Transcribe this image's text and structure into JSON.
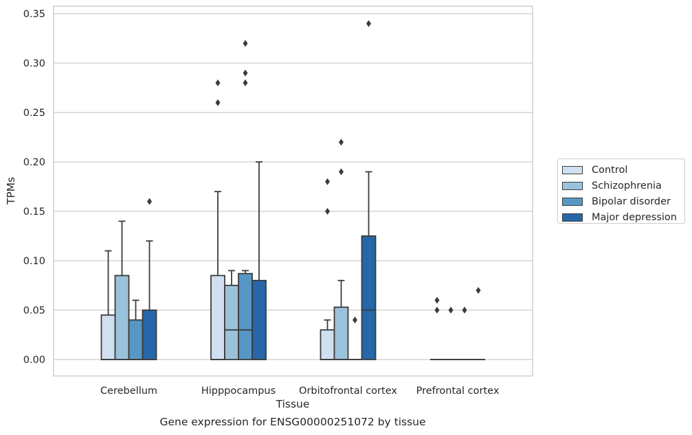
{
  "chart_data": {
    "type": "box",
    "xlabel": "Tissue",
    "ylabel": "TPMs",
    "caption": "Gene expression for ENSG00000251072 by tissue",
    "ylim": [
      -0.017,
      0.358
    ],
    "yticks": [
      0.0,
      0.05,
      0.1,
      0.15,
      0.2,
      0.25,
      0.3,
      0.35
    ],
    "ytick_labels": [
      "0.00",
      "0.05",
      "0.10",
      "0.15",
      "0.20",
      "0.25",
      "0.30",
      "0.35"
    ],
    "grid": "horizontal",
    "legend_position": "right, outside plot",
    "categories": [
      "Cerebellum",
      "Hipppocampus",
      "Orbitofrontal cortex",
      "Prefrontal cortex"
    ],
    "series": [
      {
        "name": "Control",
        "color": "#d0e0f0",
        "boxes": [
          {
            "min": 0.0,
            "q1": 0.0,
            "median": 0.0,
            "q3": 0.045,
            "max": 0.11,
            "outliers": []
          },
          {
            "min": 0.0,
            "q1": 0.0,
            "median": 0.0,
            "q3": 0.085,
            "max": 0.17,
            "outliers": [
              0.26,
              0.28
            ]
          },
          {
            "min": 0.0,
            "q1": 0.0,
            "median": 0.0,
            "q3": 0.03,
            "max": 0.04,
            "outliers": [
              0.15,
              0.18
            ]
          },
          {
            "min": 0.0,
            "q1": 0.0,
            "median": 0.0,
            "q3": 0.0,
            "max": 0.0,
            "outliers": [
              0.05,
              0.06
            ]
          }
        ]
      },
      {
        "name": "Schizophrenia",
        "color": "#9bc2db",
        "boxes": [
          {
            "min": 0.0,
            "q1": 0.0,
            "median": 0.0,
            "q3": 0.085,
            "max": 0.14,
            "outliers": []
          },
          {
            "min": 0.0,
            "q1": 0.0,
            "median": 0.03,
            "q3": 0.075,
            "max": 0.09,
            "outliers": []
          },
          {
            "min": 0.0,
            "q1": 0.0,
            "median": 0.0,
            "q3": 0.053,
            "max": 0.08,
            "outliers": [
              0.19,
              0.22
            ]
          },
          {
            "min": 0.0,
            "q1": 0.0,
            "median": 0.0,
            "q3": 0.0,
            "max": 0.0,
            "outliers": [
              0.05
            ]
          }
        ]
      },
      {
        "name": "Bipolar disorder",
        "color": "#5897c5",
        "boxes": [
          {
            "min": 0.0,
            "q1": 0.0,
            "median": 0.0,
            "q3": 0.04,
            "max": 0.06,
            "outliers": []
          },
          {
            "min": 0.0,
            "q1": 0.0,
            "median": 0.03,
            "q3": 0.087,
            "max": 0.09,
            "outliers": [
              0.28,
              0.29,
              0.32
            ]
          },
          {
            "min": 0.0,
            "q1": 0.0,
            "median": 0.0,
            "q3": 0.0,
            "max": 0.0,
            "outliers": [
              0.04
            ]
          },
          {
            "min": 0.0,
            "q1": 0.0,
            "median": 0.0,
            "q3": 0.0,
            "max": 0.0,
            "outliers": [
              0.05
            ]
          }
        ]
      },
      {
        "name": "Major depression",
        "color": "#2767a9",
        "boxes": [
          {
            "min": 0.0,
            "q1": 0.0,
            "median": 0.0,
            "q3": 0.05,
            "max": 0.12,
            "outliers": [
              0.16
            ]
          },
          {
            "min": 0.0,
            "q1": 0.0,
            "median": 0.0,
            "q3": 0.08,
            "max": 0.2,
            "outliers": []
          },
          {
            "min": 0.0,
            "q1": 0.0,
            "median": 0.05,
            "q3": 0.125,
            "max": 0.19,
            "outliers": [
              0.34
            ]
          },
          {
            "min": 0.0,
            "q1": 0.0,
            "median": 0.0,
            "q3": 0.0,
            "max": 0.0,
            "outliers": [
              0.07
            ]
          }
        ]
      }
    ]
  }
}
